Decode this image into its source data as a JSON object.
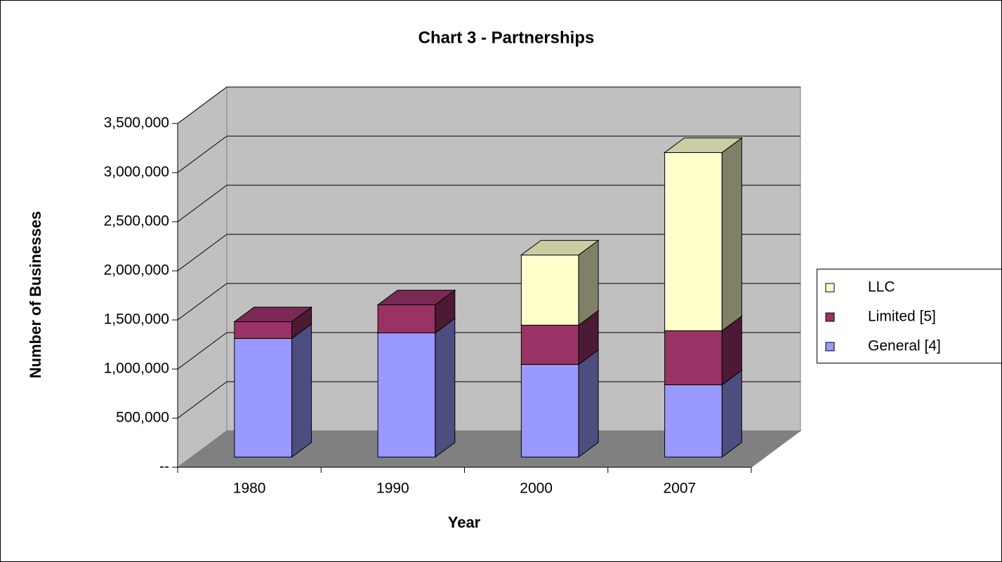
{
  "chart_data": {
    "type": "bar3d_stacked",
    "title": "Chart 3 - Partnerships",
    "x_label": "Year",
    "y_label": "Number of Businesses",
    "categories": [
      "1980",
      "1990",
      "2000",
      "2007"
    ],
    "series": [
      {
        "name": "General [4]",
        "color": "#9999ff",
        "values": [
          1207000,
          1264000,
          943000,
          736000
        ]
      },
      {
        "name": "Limited [5]",
        "color": "#993366",
        "values": [
          171000,
          286000,
          400000,
          550000
        ]
      },
      {
        "name": "LLC",
        "color": "#ffffcc",
        "values": [
          0,
          0,
          714000,
          1814000
        ]
      }
    ],
    "ylim": [
      0,
      3500000
    ],
    "yticks": [
      {
        "value": 0,
        "label": "--"
      },
      {
        "value": 500000,
        "label": "500,000"
      },
      {
        "value": 1000000,
        "label": "1,000,000"
      },
      {
        "value": 1500000,
        "label": "1,500,000"
      },
      {
        "value": 2000000,
        "label": "2,000,000"
      },
      {
        "value": 2500000,
        "label": "2,500,000"
      },
      {
        "value": 3000000,
        "label": "3,000,000"
      },
      {
        "value": 3500000,
        "label": "3,500,000"
      }
    ],
    "grid": true,
    "legend": "right"
  }
}
